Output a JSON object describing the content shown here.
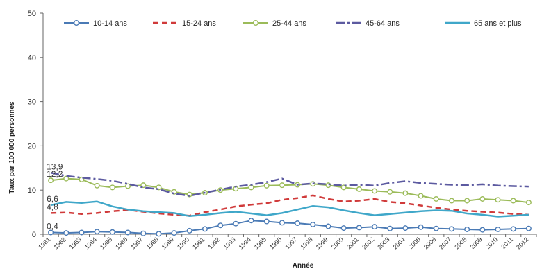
{
  "chart_data": {
    "type": "line",
    "xlabel": "Année",
    "ylabel": "Taux par 100 000 personnes",
    "ylim": [
      0,
      50
    ],
    "yticks": [
      0,
      10,
      20,
      30,
      40,
      50
    ],
    "grid": false,
    "legend_position": "top",
    "x": [
      "1981",
      "1982",
      "1983",
      "1984",
      "1985",
      "1986",
      "1987",
      "1988",
      "1989",
      "1990",
      "1991",
      "1992",
      "1993",
      "1994",
      "1995",
      "1996",
      "1997",
      "1998",
      "1999",
      "2000",
      "2001",
      "2002",
      "2003",
      "2004",
      "2005",
      "2006",
      "2007",
      "2008",
      "2009",
      "2010",
      "2011",
      "2012"
    ],
    "series": [
      {
        "name": "10-14 ans",
        "color": "#4a7ab5",
        "style": "solid-markers",
        "values": [
          0.4,
          0.3,
          0.4,
          0.6,
          0.5,
          0.4,
          0.2,
          0.1,
          0.3,
          0.8,
          1.2,
          2.0,
          2.4,
          3.1,
          2.9,
          2.6,
          2.5,
          2.2,
          1.8,
          1.4,
          1.5,
          1.7,
          1.3,
          1.4,
          1.6,
          1.3,
          1.2,
          1.1,
          1.0,
          1.1,
          1.2,
          1.3
        ]
      },
      {
        "name": "15-24 ans",
        "color": "#d03a3a",
        "style": "dashed",
        "values": [
          4.8,
          4.9,
          4.6,
          4.8,
          5.2,
          5.5,
          5.1,
          4.7,
          4.4,
          4.2,
          5.0,
          5.6,
          6.3,
          6.7,
          7.0,
          7.8,
          8.2,
          8.8,
          8.0,
          7.4,
          7.6,
          8.0,
          7.3,
          7.0,
          6.5,
          6.0,
          5.6,
          5.3,
          5.1,
          4.9,
          4.6,
          4.4
        ]
      },
      {
        "name": "25-44 ans",
        "color": "#9bbb59",
        "style": "solid-markers",
        "values": [
          12.2,
          12.6,
          12.4,
          11.0,
          10.6,
          10.9,
          11.1,
          10.6,
          9.6,
          9.0,
          9.4,
          10.0,
          10.3,
          10.6,
          11.0,
          11.1,
          11.2,
          11.4,
          11.1,
          10.6,
          10.2,
          9.8,
          9.6,
          9.3,
          8.7,
          8.0,
          7.6,
          7.6,
          8.0,
          7.8,
          7.6,
          7.2
        ]
      },
      {
        "name": "45-64 ans",
        "color": "#5c5aa0",
        "style": "dashdot",
        "values": [
          13.9,
          13.2,
          12.8,
          12.5,
          12.1,
          11.4,
          10.6,
          10.2,
          9.2,
          8.7,
          9.4,
          10.1,
          10.8,
          11.2,
          11.8,
          12.6,
          11.2,
          11.5,
          11.3,
          11.0,
          11.2,
          11.0,
          11.6,
          12.0,
          11.6,
          11.4,
          11.2,
          11.1,
          11.3,
          11.0,
          10.9,
          10.8
        ]
      },
      {
        "name": "65 ans et plus",
        "color": "#3fa7c9",
        "style": "solid-thick",
        "values": [
          6.6,
          7.3,
          7.1,
          7.4,
          6.3,
          5.6,
          5.2,
          5.0,
          4.8,
          4.1,
          4.4,
          4.8,
          5.1,
          4.7,
          4.3,
          4.8,
          5.6,
          6.4,
          6.1,
          5.4,
          4.8,
          4.3,
          4.6,
          4.9,
          5.2,
          5.4,
          5.3,
          4.7,
          4.4,
          4.0,
          4.2,
          4.4
        ]
      }
    ],
    "annotations": [
      {
        "text": "13,9",
        "series": 3,
        "index": 0
      },
      {
        "text": "12,2",
        "series": 2,
        "index": 0
      },
      {
        "text": "6,6",
        "series": 4,
        "index": 0
      },
      {
        "text": "4,8",
        "series": 1,
        "index": 0
      },
      {
        "text": "0,4",
        "series": 0,
        "index": 0
      }
    ]
  }
}
